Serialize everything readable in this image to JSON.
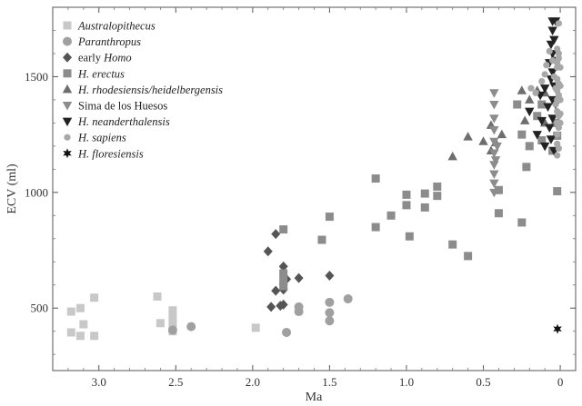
{
  "chart_data": {
    "type": "scatter",
    "xlabel": "Ma",
    "ylabel": "ECV (ml)",
    "xlim": [
      3.3,
      -0.1
    ],
    "ylim": [
      230,
      1800
    ],
    "x_ticks": [
      3.0,
      2.5,
      2.0,
      1.5,
      1.0,
      0.5,
      0
    ],
    "x_tick_labels": [
      "3.0",
      "2.5",
      "2.0",
      "1.5",
      "1.0",
      "0.5",
      "0"
    ],
    "y_ticks": [
      500,
      1000,
      1500
    ],
    "y_tick_labels": [
      "500",
      "1000",
      "1500"
    ],
    "grid": false,
    "legend_position": "top-left",
    "series": [
      {
        "name": "Australopithecus",
        "legend_parts": [
          {
            "text": "Australopithecus",
            "italic": true
          }
        ],
        "marker": "square",
        "color": "#c8c8c8",
        "points": [
          [
            3.18,
            485
          ],
          [
            3.18,
            395
          ],
          [
            3.12,
            500
          ],
          [
            3.12,
            380
          ],
          [
            3.1,
            430
          ],
          [
            3.03,
            545
          ],
          [
            3.03,
            380
          ],
          [
            2.62,
            550
          ],
          [
            2.6,
            435
          ],
          [
            2.52,
            490
          ],
          [
            2.52,
            465
          ],
          [
            2.52,
            440
          ],
          [
            2.52,
            415
          ],
          [
            2.52,
            400
          ],
          [
            1.98,
            415
          ]
        ]
      },
      {
        "name": "Paranthropus",
        "legend_parts": [
          {
            "text": "Paranthropus",
            "italic": true
          }
        ],
        "marker": "circle",
        "color": "#a0a0a0",
        "points": [
          [
            2.52,
            405
          ],
          [
            2.4,
            420
          ],
          [
            1.78,
            395
          ],
          [
            1.7,
            505
          ],
          [
            1.7,
            485
          ],
          [
            1.5,
            525
          ],
          [
            1.5,
            480
          ],
          [
            1.5,
            445
          ],
          [
            1.38,
            540
          ]
        ]
      },
      {
        "name": "early Homo",
        "legend_parts": [
          {
            "text": "early ",
            "italic": false
          },
          {
            "text": "Homo",
            "italic": true
          }
        ],
        "marker": "diamond",
        "color": "#555555",
        "points": [
          [
            1.9,
            745
          ],
          [
            1.88,
            505
          ],
          [
            1.85,
            820
          ],
          [
            1.85,
            575
          ],
          [
            1.82,
            510
          ],
          [
            1.8,
            680
          ],
          [
            1.8,
            580
          ],
          [
            1.8,
            515
          ],
          [
            1.78,
            625
          ],
          [
            1.7,
            630
          ],
          [
            1.5,
            640
          ]
        ]
      },
      {
        "name": "H. erectus",
        "legend_parts": [
          {
            "text": "H. erectus",
            "italic": true
          }
        ],
        "marker": "square",
        "color": "#8c8c8c",
        "points": [
          [
            1.8,
            840
          ],
          [
            1.8,
            650
          ],
          [
            1.8,
            615
          ],
          [
            1.8,
            595
          ],
          [
            1.55,
            795
          ],
          [
            1.5,
            895
          ],
          [
            1.2,
            1060
          ],
          [
            1.2,
            850
          ],
          [
            1.1,
            900
          ],
          [
            1.0,
            990
          ],
          [
            1.0,
            945
          ],
          [
            0.98,
            810
          ],
          [
            0.88,
            995
          ],
          [
            0.88,
            935
          ],
          [
            0.8,
            1025
          ],
          [
            0.8,
            985
          ],
          [
            0.7,
            775
          ],
          [
            0.6,
            725
          ],
          [
            0.4,
            1010
          ],
          [
            0.4,
            910
          ],
          [
            0.28,
            1380
          ],
          [
            0.25,
            870
          ],
          [
            0.25,
            1250
          ],
          [
            0.22,
            1110
          ],
          [
            0.2,
            1200
          ],
          [
            0.15,
            1330
          ],
          [
            0.12,
            1380
          ],
          [
            0.12,
            1225
          ],
          [
            0.05,
            1180
          ],
          [
            0.02,
            1245
          ],
          [
            0.02,
            1005
          ],
          [
            0.03,
            1300
          ]
        ]
      },
      {
        "name": "H. rhodesiensis/heidelbergensis",
        "legend_parts": [
          {
            "text": "H. rhodesiensis/heidelbergensis",
            "italic": true
          }
        ],
        "marker": "triangle-up",
        "color": "#6e6e6e",
        "points": [
          [
            0.7,
            1155
          ],
          [
            0.6,
            1240
          ],
          [
            0.5,
            1220
          ],
          [
            0.45,
            1290
          ],
          [
            0.45,
            1180
          ],
          [
            0.42,
            1215
          ],
          [
            0.38,
            1250
          ],
          [
            0.25,
            1440
          ],
          [
            0.23,
            1310
          ],
          [
            0.2,
            1400
          ],
          [
            0.15,
            1440
          ],
          [
            0.1,
            1430
          ],
          [
            0.1,
            1300
          ]
        ]
      },
      {
        "name": "Sima de los Huesos",
        "legend_parts": [
          {
            "text": "Sima de los Huesos",
            "italic": false
          }
        ],
        "marker": "triangle-down",
        "color": "#8c8c8c",
        "points": [
          [
            0.43,
            1430
          ],
          [
            0.43,
            1380
          ],
          [
            0.43,
            1320
          ],
          [
            0.43,
            1270
          ],
          [
            0.43,
            1220
          ],
          [
            0.43,
            1170
          ],
          [
            0.43,
            1120
          ],
          [
            0.43,
            1080
          ],
          [
            0.43,
            1040
          ],
          [
            0.43,
            1000
          ],
          [
            0.42,
            1140
          ],
          [
            0.41,
            1200
          ]
        ]
      },
      {
        "name": "H. neanderthalensis",
        "legend_parts": [
          {
            "text": "H. neanderthalensis",
            "italic": true
          }
        ],
        "marker": "triangle-down",
        "color": "#222222",
        "points": [
          [
            0.2,
            1350
          ],
          [
            0.15,
            1250
          ],
          [
            0.13,
            1420
          ],
          [
            0.12,
            1310
          ],
          [
            0.1,
            1450
          ],
          [
            0.1,
            1200
          ],
          [
            0.08,
            1370
          ],
          [
            0.07,
            1560
          ],
          [
            0.07,
            1280
          ],
          [
            0.06,
            1640
          ],
          [
            0.06,
            1490
          ],
          [
            0.06,
            1230
          ],
          [
            0.05,
            1740
          ],
          [
            0.05,
            1700
          ],
          [
            0.05,
            1600
          ],
          [
            0.05,
            1520
          ],
          [
            0.05,
            1400
          ],
          [
            0.05,
            1320
          ],
          [
            0.04,
            1660
          ],
          [
            0.04,
            1460
          ],
          [
            0.04,
            1180
          ],
          [
            0.03,
            1740
          ],
          [
            0.03,
            1570
          ],
          [
            0.03,
            1380
          ]
        ]
      },
      {
        "name": "H. sapiens",
        "legend_parts": [
          {
            "text": "H. sapiens",
            "italic": true
          }
        ],
        "marker": "circle-small",
        "color": "#a8a8a8",
        "points": [
          [
            0.19,
            1450
          ],
          [
            0.16,
            1430
          ],
          [
            0.12,
            1480
          ],
          [
            0.1,
            1510
          ],
          [
            0.09,
            1550
          ],
          [
            0.07,
            1610
          ],
          [
            0.05,
            1570
          ],
          [
            0.04,
            1500
          ],
          [
            0.03,
            1450
          ],
          [
            0.03,
            1380
          ],
          [
            0.02,
            1620
          ],
          [
            0.02,
            1560
          ],
          [
            0.02,
            1540
          ],
          [
            0.02,
            1490
          ],
          [
            0.02,
            1440
          ],
          [
            0.02,
            1400
          ],
          [
            0.02,
            1350
          ],
          [
            0.02,
            1300
          ],
          [
            0.02,
            1250
          ],
          [
            0.02,
            1210
          ],
          [
            0.02,
            1160
          ],
          [
            0.01,
            1730
          ],
          [
            0.01,
            1600
          ],
          [
            0.01,
            1580
          ],
          [
            0.01,
            1470
          ],
          [
            0.01,
            1420
          ],
          [
            0.01,
            1330
          ],
          [
            0.01,
            1280
          ],
          [
            0.01,
            1190
          ],
          [
            0.0,
            1540
          ],
          [
            0.0,
            1460
          ],
          [
            0.0,
            1400
          ],
          [
            0.0,
            1340
          ],
          [
            0.0,
            1300
          ]
        ]
      },
      {
        "name": "H. floresiensis",
        "legend_parts": [
          {
            "text": "H. floresiensis",
            "italic": true
          }
        ],
        "marker": "star",
        "color": "#111111",
        "points": [
          [
            0.018,
            410
          ]
        ]
      }
    ]
  }
}
